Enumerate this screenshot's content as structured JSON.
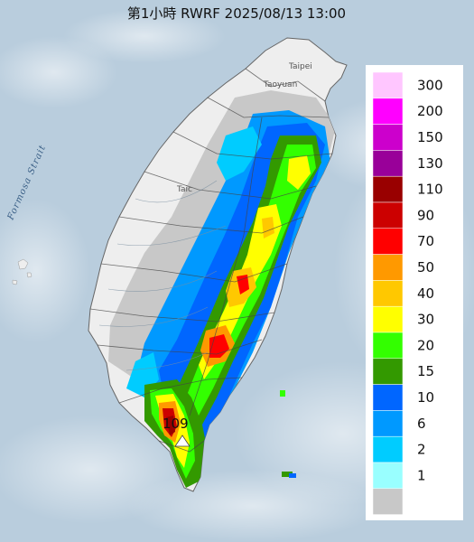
{
  "title": "第1小時  RWRF 2025/08/13 13:00",
  "places": {
    "taipei": "Taipei",
    "taoyuan": "Taoyuan",
    "taichung": "Taic",
    "strait": "Formosa Strait"
  },
  "max_marker": {
    "value": "109"
  },
  "legend": {
    "bins": [
      {
        "label": "300",
        "color": "#ffc6ff"
      },
      {
        "label": "200",
        "color": "#ff00ff"
      },
      {
        "label": "150",
        "color": "#cc00cc"
      },
      {
        "label": "130",
        "color": "#990099"
      },
      {
        "label": "110",
        "color": "#990000"
      },
      {
        "label": "90",
        "color": "#cc0000"
      },
      {
        "label": "70",
        "color": "#ff0000"
      },
      {
        "label": "50",
        "color": "#ff9900"
      },
      {
        "label": "40",
        "color": "#ffc800"
      },
      {
        "label": "30",
        "color": "#ffff00"
      },
      {
        "label": "20",
        "color": "#33ff00"
      },
      {
        "label": "15",
        "color": "#339900"
      },
      {
        "label": "10",
        "color": "#0066ff"
      },
      {
        "label": "6",
        "color": "#0099ff"
      },
      {
        "label": "2",
        "color": "#00ccff"
      },
      {
        "label": "1",
        "color": "#99ffff"
      },
      {
        "label": "",
        "color": "#c8c8c8"
      }
    ]
  },
  "colors": {
    "sea": "#b9cddd",
    "land": "#eeeeee",
    "mountain_gray": "#c8c8c8"
  }
}
